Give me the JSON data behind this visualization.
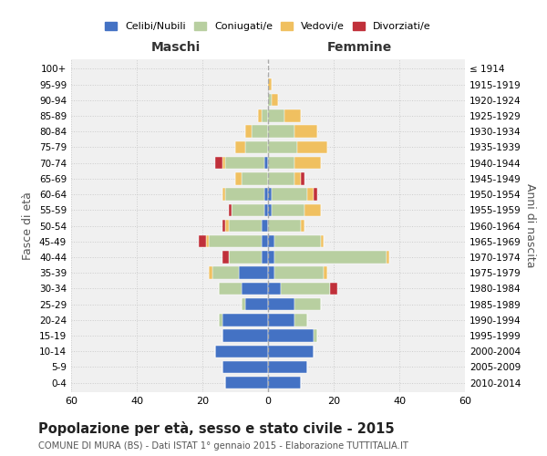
{
  "age_groups": [
    "0-4",
    "5-9",
    "10-14",
    "15-19",
    "20-24",
    "25-29",
    "30-34",
    "35-39",
    "40-44",
    "45-49",
    "50-54",
    "55-59",
    "60-64",
    "65-69",
    "70-74",
    "75-79",
    "80-84",
    "85-89",
    "90-94",
    "95-99",
    "100+"
  ],
  "birth_years": [
    "2010-2014",
    "2005-2009",
    "2000-2004",
    "1995-1999",
    "1990-1994",
    "1985-1989",
    "1980-1984",
    "1975-1979",
    "1970-1974",
    "1965-1969",
    "1960-1964",
    "1955-1959",
    "1950-1954",
    "1945-1949",
    "1940-1944",
    "1935-1939",
    "1930-1934",
    "1925-1929",
    "1920-1924",
    "1915-1919",
    "≤ 1914"
  ],
  "male": {
    "celibi": [
      13,
      14,
      16,
      14,
      14,
      7,
      8,
      9,
      2,
      2,
      2,
      1,
      1,
      0,
      1,
      0,
      0,
      0,
      0,
      0,
      0
    ],
    "coniugati": [
      0,
      0,
      0,
      0,
      1,
      1,
      7,
      8,
      10,
      16,
      10,
      10,
      12,
      8,
      12,
      7,
      5,
      2,
      0,
      0,
      0
    ],
    "vedovi": [
      0,
      0,
      0,
      0,
      0,
      0,
      0,
      1,
      0,
      1,
      1,
      0,
      1,
      2,
      1,
      3,
      2,
      1,
      0,
      0,
      0
    ],
    "divorziati": [
      0,
      0,
      0,
      0,
      0,
      0,
      0,
      0,
      2,
      2,
      1,
      1,
      0,
      0,
      2,
      0,
      0,
      0,
      0,
      0,
      0
    ]
  },
  "female": {
    "nubili": [
      10,
      12,
      14,
      14,
      8,
      8,
      4,
      2,
      2,
      2,
      0,
      1,
      1,
      0,
      0,
      0,
      0,
      0,
      0,
      0,
      0
    ],
    "coniugate": [
      0,
      0,
      0,
      1,
      4,
      8,
      15,
      15,
      34,
      14,
      10,
      10,
      11,
      8,
      8,
      9,
      8,
      5,
      1,
      0,
      0
    ],
    "vedove": [
      0,
      0,
      0,
      0,
      0,
      0,
      0,
      1,
      1,
      1,
      1,
      5,
      2,
      2,
      8,
      9,
      7,
      5,
      2,
      1,
      0
    ],
    "divorziate": [
      0,
      0,
      0,
      0,
      0,
      0,
      2,
      0,
      0,
      0,
      0,
      0,
      1,
      1,
      0,
      0,
      0,
      0,
      0,
      0,
      0
    ]
  },
  "colors": {
    "celibi_nubili": "#4472c4",
    "coniugati_e": "#b8cfa0",
    "vedovi_e": "#f0c060",
    "divorziati_e": "#c0303a"
  },
  "xlim": 60,
  "title": "Popolazione per età, sesso e stato civile - 2015",
  "subtitle": "COMUNE DI MURA (BS) - Dati ISTAT 1° gennaio 2015 - Elaborazione TUTTITALIA.IT",
  "xlabel_left": "Maschi",
  "xlabel_right": "Femmine",
  "ylabel_left": "Fasce di età",
  "ylabel_right": "Anni di nascita",
  "bg_color": "#f0f0f0",
  "grid_color": "#cccccc"
}
